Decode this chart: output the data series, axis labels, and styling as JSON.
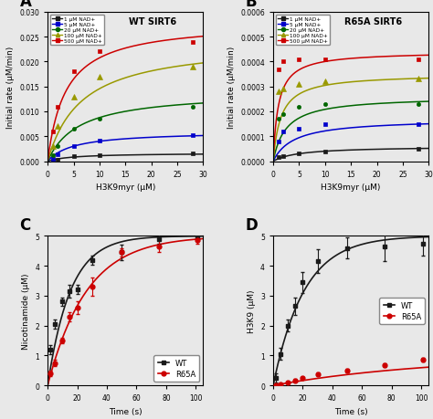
{
  "panel_A": {
    "title": "WT SIRT6",
    "xlabel": "H3K9myr (μM)",
    "ylabel": "Initial rate (μM/min)",
    "ylim": [
      0,
      0.03
    ],
    "xlim": [
      0,
      30
    ],
    "yticks": [
      0,
      0.005,
      0.01,
      0.015,
      0.02,
      0.025,
      0.03
    ],
    "xticks": [
      0,
      5,
      10,
      15,
      20,
      25,
      30
    ],
    "series": [
      {
        "label": "1 μM NAD+",
        "color": "#1a1a1a",
        "marker": "s",
        "vmax": 0.00165,
        "km": 5.0,
        "data_x": [
          1,
          2,
          5,
          10,
          28
        ],
        "data_y": [
          0.00015,
          0.00025,
          0.001,
          0.00125,
          0.00155
        ]
      },
      {
        "label": "5 μM NAD+",
        "color": "#0000cc",
        "marker": "s",
        "vmax": 0.006,
        "km": 5.0,
        "data_x": [
          1,
          2,
          5,
          10,
          28
        ],
        "data_y": [
          0.0005,
          0.0013,
          0.003,
          0.0042,
          0.0052
        ]
      },
      {
        "label": "20 μM NAD+",
        "color": "#006600",
        "marker": "o",
        "vmax": 0.014,
        "km": 6.0,
        "data_x": [
          1,
          2,
          5,
          10,
          28
        ],
        "data_y": [
          0.0012,
          0.003,
          0.0065,
          0.0085,
          0.011
        ]
      },
      {
        "label": "100 μM NAD+",
        "color": "#999900",
        "marker": "^",
        "vmax": 0.024,
        "km": 6.5,
        "data_x": [
          1,
          2,
          5,
          10,
          28
        ],
        "data_y": [
          0.003,
          0.007,
          0.013,
          0.017,
          0.019
        ]
      },
      {
        "label": "500 μM NAD+",
        "color": "#cc0000",
        "marker": "s",
        "vmax": 0.028,
        "km": 3.5,
        "data_x": [
          1,
          2,
          5,
          10,
          28
        ],
        "data_y": [
          0.006,
          0.011,
          0.018,
          0.022,
          0.024
        ]
      }
    ]
  },
  "panel_B": {
    "title": "R65A SIRT6",
    "xlabel": "H3K9myr (μM)",
    "ylabel": "Initial rate (μM/min)",
    "ylim": [
      0,
      0.0006
    ],
    "xlim": [
      0,
      30
    ],
    "yticks": [
      0,
      0.0001,
      0.0002,
      0.0003,
      0.0004,
      0.0005,
      0.0006
    ],
    "xticks": [
      0,
      5,
      10,
      15,
      20,
      25,
      30
    ],
    "series": [
      {
        "label": "1 μM NAD+",
        "color": "#1a1a1a",
        "marker": "s",
        "vmax": 6e-05,
        "km": 5.0,
        "data_x": [
          1,
          2,
          5,
          10,
          28
        ],
        "data_y": [
          1.5e-05,
          2e-05,
          3e-05,
          4e-05,
          5e-05
        ]
      },
      {
        "label": "5 μM NAD+",
        "color": "#0000cc",
        "marker": "s",
        "vmax": 0.00017,
        "km": 4.0,
        "data_x": [
          1,
          2,
          5,
          10,
          28
        ],
        "data_y": [
          8e-05,
          0.00012,
          0.00013,
          0.00015,
          0.00015
        ]
      },
      {
        "label": "20 μM NAD+",
        "color": "#006600",
        "marker": "o",
        "vmax": 0.00026,
        "km": 2.5,
        "data_x": [
          1,
          2,
          5,
          10,
          28
        ],
        "data_y": [
          0.00017,
          0.00019,
          0.00022,
          0.00023,
          0.00023
        ]
      },
      {
        "label": "100 μM NAD+",
        "color": "#999900",
        "marker": "^",
        "vmax": 0.00035,
        "km": 1.5,
        "data_x": [
          1,
          2,
          5,
          10,
          28
        ],
        "data_y": [
          0.00028,
          0.00029,
          0.00031,
          0.00032,
          0.00033
        ]
      },
      {
        "label": "500 μM NAD+",
        "color": "#cc0000",
        "marker": "s",
        "vmax": 0.00044,
        "km": 1.0,
        "data_x": [
          1,
          2,
          5,
          10,
          28
        ],
        "data_y": [
          0.00037,
          0.0004,
          0.00041,
          0.00041,
          0.00041
        ]
      }
    ]
  },
  "panel_C": {
    "ylabel": "Nicotinamide (μM)",
    "xlabel": "Time (s)",
    "ylim": [
      0,
      5
    ],
    "xlim": [
      0,
      105
    ],
    "yticks": [
      0,
      1,
      2,
      3,
      4,
      5
    ],
    "xticks": [
      0,
      20,
      40,
      60,
      80,
      100
    ],
    "wt": {
      "color": "#1a1a1a",
      "marker": "s",
      "data_x": [
        2,
        5,
        10,
        15,
        20,
        30,
        50,
        75,
        101
      ],
      "data_y": [
        1.2,
        2.05,
        2.8,
        3.15,
        3.2,
        4.2,
        4.45,
        4.9,
        4.95
      ],
      "data_yerr": [
        0.15,
        0.15,
        0.15,
        0.2,
        0.15,
        0.15,
        0.25,
        0.15,
        0.1
      ],
      "vmax": 5.0,
      "k": 0.065
    },
    "r65a": {
      "color": "#cc0000",
      "marker": "o",
      "data_x": [
        2,
        5,
        10,
        15,
        20,
        30,
        50,
        75,
        101
      ],
      "data_y": [
        0.4,
        0.75,
        1.5,
        2.3,
        2.6,
        3.3,
        4.45,
        4.65,
        4.85
      ],
      "data_yerr": [
        0.1,
        0.1,
        0.1,
        0.15,
        0.2,
        0.3,
        0.15,
        0.2,
        0.12
      ],
      "vmax": 5.0,
      "k": 0.038
    }
  },
  "panel_D": {
    "ylabel": "H3K9 (μM)",
    "xlabel": "Time (s)",
    "ylim": [
      0,
      5
    ],
    "xlim": [
      0,
      105
    ],
    "yticks": [
      0,
      1,
      2,
      3,
      4,
      5
    ],
    "xticks": [
      0,
      20,
      40,
      60,
      80,
      100
    ],
    "wt": {
      "color": "#1a1a1a",
      "marker": "s",
      "data_x": [
        2,
        5,
        10,
        15,
        20,
        30,
        50,
        75,
        101
      ],
      "data_y": [
        0.25,
        1.05,
        2.0,
        2.65,
        3.45,
        4.15,
        4.6,
        4.65,
        4.75
      ],
      "data_yerr": [
        0.15,
        0.2,
        0.2,
        0.3,
        0.35,
        0.4,
        0.35,
        0.5,
        0.4
      ],
      "vmax": 5.0,
      "k": 0.048
    },
    "r65a": {
      "color": "#cc0000",
      "marker": "o",
      "data_x": [
        2,
        5,
        10,
        15,
        20,
        30,
        50,
        75,
        101
      ],
      "data_y": [
        0.02,
        0.05,
        0.1,
        0.17,
        0.25,
        0.38,
        0.5,
        0.68,
        0.85
      ],
      "data_yerr": [
        0.02,
        0.02,
        0.03,
        0.04,
        0.04,
        0.05,
        0.06,
        0.06,
        0.06
      ],
      "vmax": 1.0,
      "k": 0.009
    }
  },
  "bg_color": "#e8e8e8"
}
